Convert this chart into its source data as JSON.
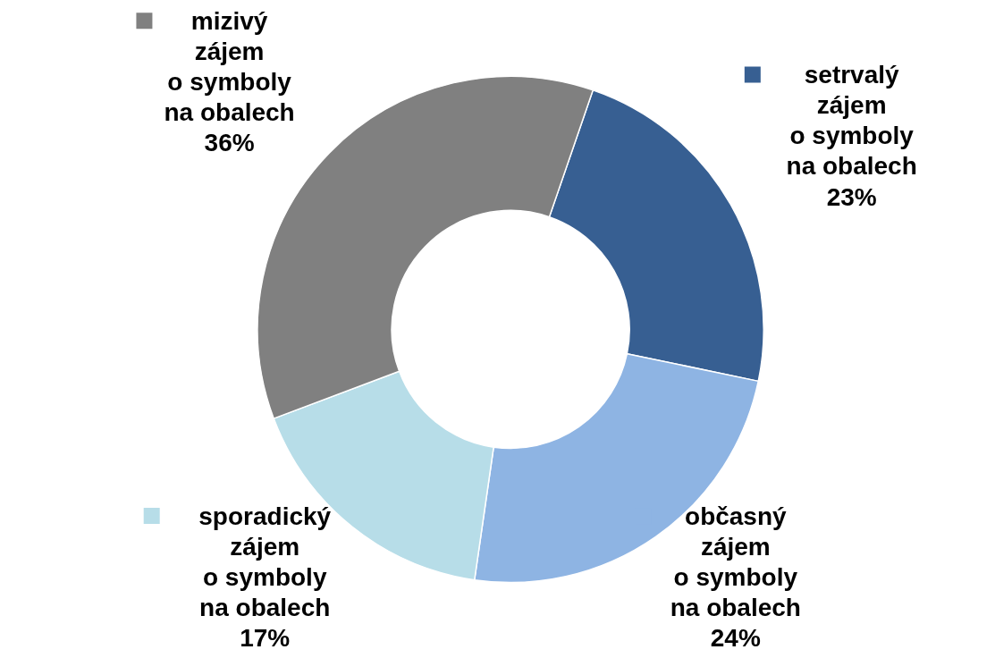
{
  "chart_data": {
    "type": "donut",
    "categories": [
      "setrvalý zájem o symboly na obalech",
      "občasný zájem o symboly na obalech",
      "sporadický zájem o symboly na obalech",
      "mizivý zájem o symboly na obalech"
    ],
    "values": [
      23,
      24,
      17,
      36
    ],
    "colors": [
      "#375f92",
      "#8eb4e3",
      "#b7dde8",
      "#808080"
    ],
    "value_labels": [
      "23%",
      "24%",
      "17%",
      "36%"
    ],
    "legend": "right"
  }
}
